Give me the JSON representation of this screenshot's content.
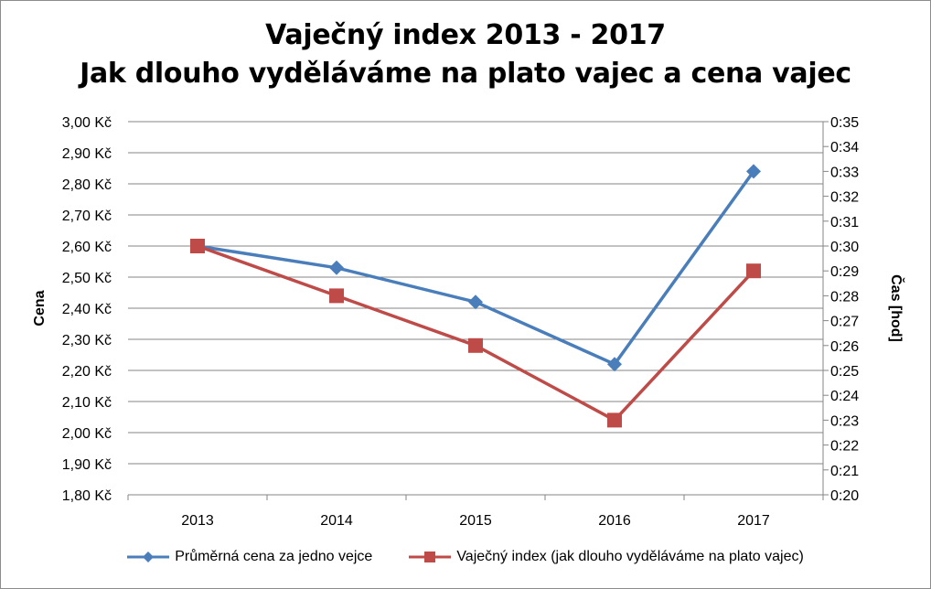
{
  "chart_data": {
    "type": "line",
    "title": "Vaječný index 2013 - 2017",
    "subtitle": "Jak dlouho vyděláváme na plato vajec a cena vajec",
    "categories": [
      "2013",
      "2014",
      "2015",
      "2016",
      "2017"
    ],
    "y_left": {
      "label": "Cena",
      "ylim": [
        1.8,
        3.0
      ],
      "ticks": [
        1.8,
        1.9,
        2.0,
        2.1,
        2.2,
        2.3,
        2.4,
        2.5,
        2.6,
        2.7,
        2.8,
        2.9,
        3.0
      ],
      "tick_labels": [
        "1,80 Kč",
        "1,90 Kč",
        "2,00 Kč",
        "2,10 Kč",
        "2,20 Kč",
        "2,30 Kč",
        "2,40 Kč",
        "2,50 Kč",
        "2,60 Kč",
        "2,70 Kč",
        "2,80 Kč",
        "2,90 Kč",
        "3,00 Kč"
      ]
    },
    "y_right": {
      "label": "Čas [hod]",
      "ylim_minutes": [
        20,
        35
      ],
      "ticks_minutes": [
        20,
        21,
        22,
        23,
        24,
        25,
        26,
        27,
        28,
        29,
        30,
        31,
        32,
        33,
        34,
        35
      ],
      "tick_labels": [
        "0:20",
        "0:21",
        "0:22",
        "0:23",
        "0:24",
        "0:25",
        "0:26",
        "0:27",
        "0:28",
        "0:29",
        "0:30",
        "0:31",
        "0:32",
        "0:33",
        "0:34",
        "0:35"
      ]
    },
    "series": [
      {
        "name": "Průměrná cena za jedno vejce",
        "axis": "left",
        "unit": "Kč",
        "values": [
          2.6,
          2.53,
          2.42,
          2.22,
          2.84
        ],
        "color": "#4a7ebb",
        "marker": "diamond"
      },
      {
        "name": "Vaječný index (jak dlouho vyděláváme na plato vajec)",
        "axis": "right",
        "unit": "minutes",
        "values": [
          30,
          28,
          26,
          23,
          29
        ],
        "color": "#be4b48",
        "marker": "square"
      }
    ],
    "grid": true,
    "legend_position": "bottom"
  }
}
